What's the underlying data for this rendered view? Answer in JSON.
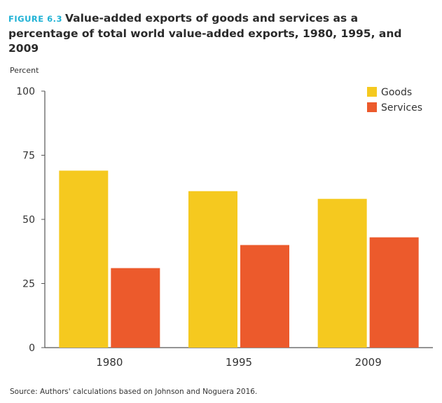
{
  "figure": {
    "label": "FIGURE 6.3",
    "title": "Value-added exports of goods and services as a percentage of total world value-added exports, 1980, 1995, and 2009",
    "y_unit": "Percent",
    "source": "Source: Authors' calculations based on Johnson and Noguera 2016."
  },
  "colors": {
    "goods": "#f5c91f",
    "services": "#ec5a2c",
    "figure_label": "#20b2d5"
  },
  "chart_data": {
    "type": "bar",
    "title": "Value-added exports of goods and services as a percentage of total world value-added exports, 1980, 1995, and 2009",
    "xlabel": "",
    "ylabel": "Percent",
    "categories": [
      "1980",
      "1995",
      "2009"
    ],
    "series": [
      {
        "name": "Goods",
        "values": [
          69,
          61,
          58
        ]
      },
      {
        "name": "Services",
        "values": [
          31,
          40,
          43
        ]
      }
    ],
    "ylim": [
      0,
      100
    ],
    "yticks": [
      0,
      25,
      50,
      75,
      100
    ],
    "grid": false,
    "legend": "top-right"
  }
}
